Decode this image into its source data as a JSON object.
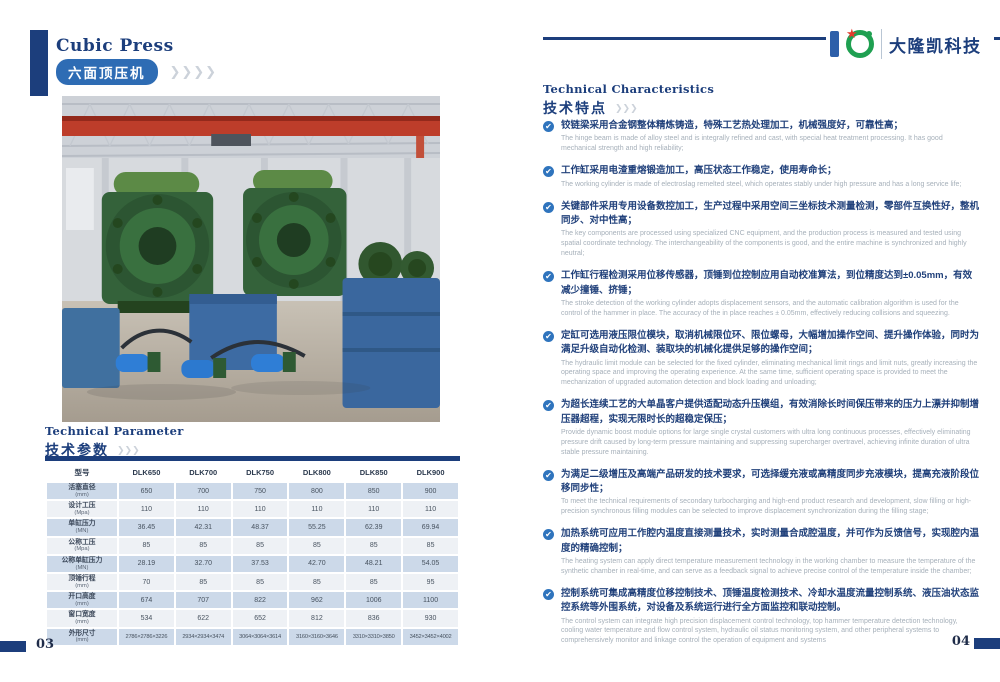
{
  "colors": {
    "accent_navy": "#1c3e7c",
    "badge_blue": "#2e6cb4",
    "bullet_blue": "#2f74bd",
    "logo_green": "#1fa051",
    "logo_red": "#e23b2d",
    "table_row_blue": "#ccd9e9",
    "table_row_light": "#eef1f5"
  },
  "icons": {
    "chevrons_large": "❯❯❯❯",
    "chevrons_small": "❯❯❯",
    "check": "✔",
    "star": "★"
  },
  "header": {
    "title_en": "Cubic Press",
    "title_zh": "六面顶压机",
    "brand": "大隆凯科技"
  },
  "left": {
    "section": {
      "en": "Technical Parameter",
      "zh": "技术参数"
    },
    "table": {
      "model_label": "型号",
      "models": [
        "DLK650",
        "DLK700",
        "DLK750",
        "DLK800",
        "DLK850",
        "DLK900"
      ],
      "rows": [
        {
          "label": "活塞直径",
          "unit": "(mm)",
          "values": [
            "650",
            "700",
            "750",
            "800",
            "850",
            "900"
          ]
        },
        {
          "label": "设计工压",
          "unit": "(Mpa)",
          "values": [
            "110",
            "110",
            "110",
            "110",
            "110",
            "110"
          ]
        },
        {
          "label": "单缸压力",
          "unit": "(MN)",
          "values": [
            "36.45",
            "42.31",
            "48.37",
            "55.25",
            "62.39",
            "69.94"
          ]
        },
        {
          "label": "公称工压",
          "unit": "(Mpa)",
          "values": [
            "85",
            "85",
            "85",
            "85",
            "85",
            "85"
          ]
        },
        {
          "label": "公称单缸压力",
          "unit": "(MN)",
          "values": [
            "28.19",
            "32.70",
            "37.53",
            "42.70",
            "48.21",
            "54.05"
          ]
        },
        {
          "label": "顶锤行程",
          "unit": "(mm)",
          "values": [
            "70",
            "85",
            "85",
            "85",
            "85",
            "95"
          ]
        },
        {
          "label": "开口高度",
          "unit": "(mm)",
          "values": [
            "674",
            "707",
            "822",
            "962",
            "1006",
            "1100"
          ]
        },
        {
          "label": "窗口宽度",
          "unit": "(mm)",
          "values": [
            "534",
            "622",
            "652",
            "812",
            "836",
            "930"
          ]
        },
        {
          "label": "外形尺寸",
          "unit": "(mm)",
          "values": [
            "2786×2786×3226",
            "2934×2934×3474",
            "3064×3064×3614",
            "3160×3160×3646",
            "3310×3310×3850",
            "3452×3452×4002"
          ]
        }
      ]
    },
    "page_number": "03"
  },
  "right": {
    "section": {
      "en": "Technical Characteristics",
      "zh": "技术特点"
    },
    "features": [
      {
        "zh": "铰链梁采用合金钢整体精炼铸造，特殊工艺热处理加工，机械强度好，可靠性高；",
        "en": "The hinge beam is made of alloy steel and is integrally refined and cast, with special heat treatment processing. It has good mechanical strength and high reliability;"
      },
      {
        "zh": "工作缸采用电渣重熔锻造加工，高压状态工作稳定，使用寿命长；",
        "en": "The working cylinder is made of electroslag remelted steel, which operates stably under high pressure and has a long service life;"
      },
      {
        "zh": "关键部件采用专用设备数控加工，生产过程中采用空间三坐标技术测量检测，零部件互换性好，整机同步、对中性高；",
        "en": "The key components are processed using specialized CNC equipment, and the production process is measured and tested using spatial coordinate technology. The interchangeability of the components is good, and the entire machine is synchronized and highly neutral;"
      },
      {
        "zh": "工作缸行程检测采用位移传感器，顶锤到位控制应用自动校准算法，到位精度达到±0.05mm，有效减少撞锤、挤锤；",
        "en": "The stroke detection of the working cylinder adopts displacement sensors, and the automatic calibration algorithm is used for the control of the hammer in place. The accuracy of the in place reaches ± 0.05mm, effectively reducing collisions and squeezing."
      },
      {
        "zh": "定缸可选用液压限位模块，取消机械限位环、限位螺母，大幅增加操作空间、提升操作体验，同时为满足升级自动化检测、装取块的机械化提供足够的操作空间；",
        "en": "The hydraulic limit module can be selected for the fixed cylinder, eliminating mechanical limit rings and limit nuts, greatly increasing the operating space and improving the operating experience. At the same time, sufficient operating space is provided to meet the mechanization of upgraded automation detection and block loading and unloading;"
      },
      {
        "zh": "为超长连续工艺的大单晶客户提供适配动态升压模组，有效消除长时间保压带来的压力上漂并抑制增压器超程，实现无限时长的超稳定保压；",
        "en": "Provide dynamic boost module options for large single crystal customers with ultra long continuous processes, effectively eliminating pressure drift caused by long-term pressure maintaining and suppressing supercharger overtravel, achieving infinite duration of ultra stable pressure maintaining."
      },
      {
        "zh": "为满足二级增压及高端产品研发的技术要求，可选择缓充液或高精度同步充液模块，提高充液阶段位移同步性；",
        "en": "To meet the technical requirements of secondary turbocharging and high-end product research and development, slow filling or high-precision synchronous filling modules can be selected to improve displacement synchronization during the filling stage;"
      },
      {
        "zh": "加热系统可应用工作腔内温度直接测量技术，实时测量合成腔温度，并可作为反馈信号，实现腔内温度的精确控制；",
        "en": "The heating system can apply direct temperature measurement technology in the working chamber to measure the temperature of the synthetic chamber in real-time, and can serve as a feedback signal to achieve precise control of the temperature inside the chamber;"
      },
      {
        "zh": "控制系统可集成高精度位移控制技术、顶锤温度检测技术、冷却水温度流量控制系统、液压油状态监控系统等外围系统，对设备及系统运行进行全方面监控和联动控制。",
        "en": "The control system can integrate high precision displacement control technology, top hammer temperature detection technology, cooling water temperature and flow control system, hydraulic oil status monitoring system, and other peripheral systems to comprehensively monitor and linkage control the operation of equipment and systems"
      }
    ],
    "page_number": "04"
  }
}
